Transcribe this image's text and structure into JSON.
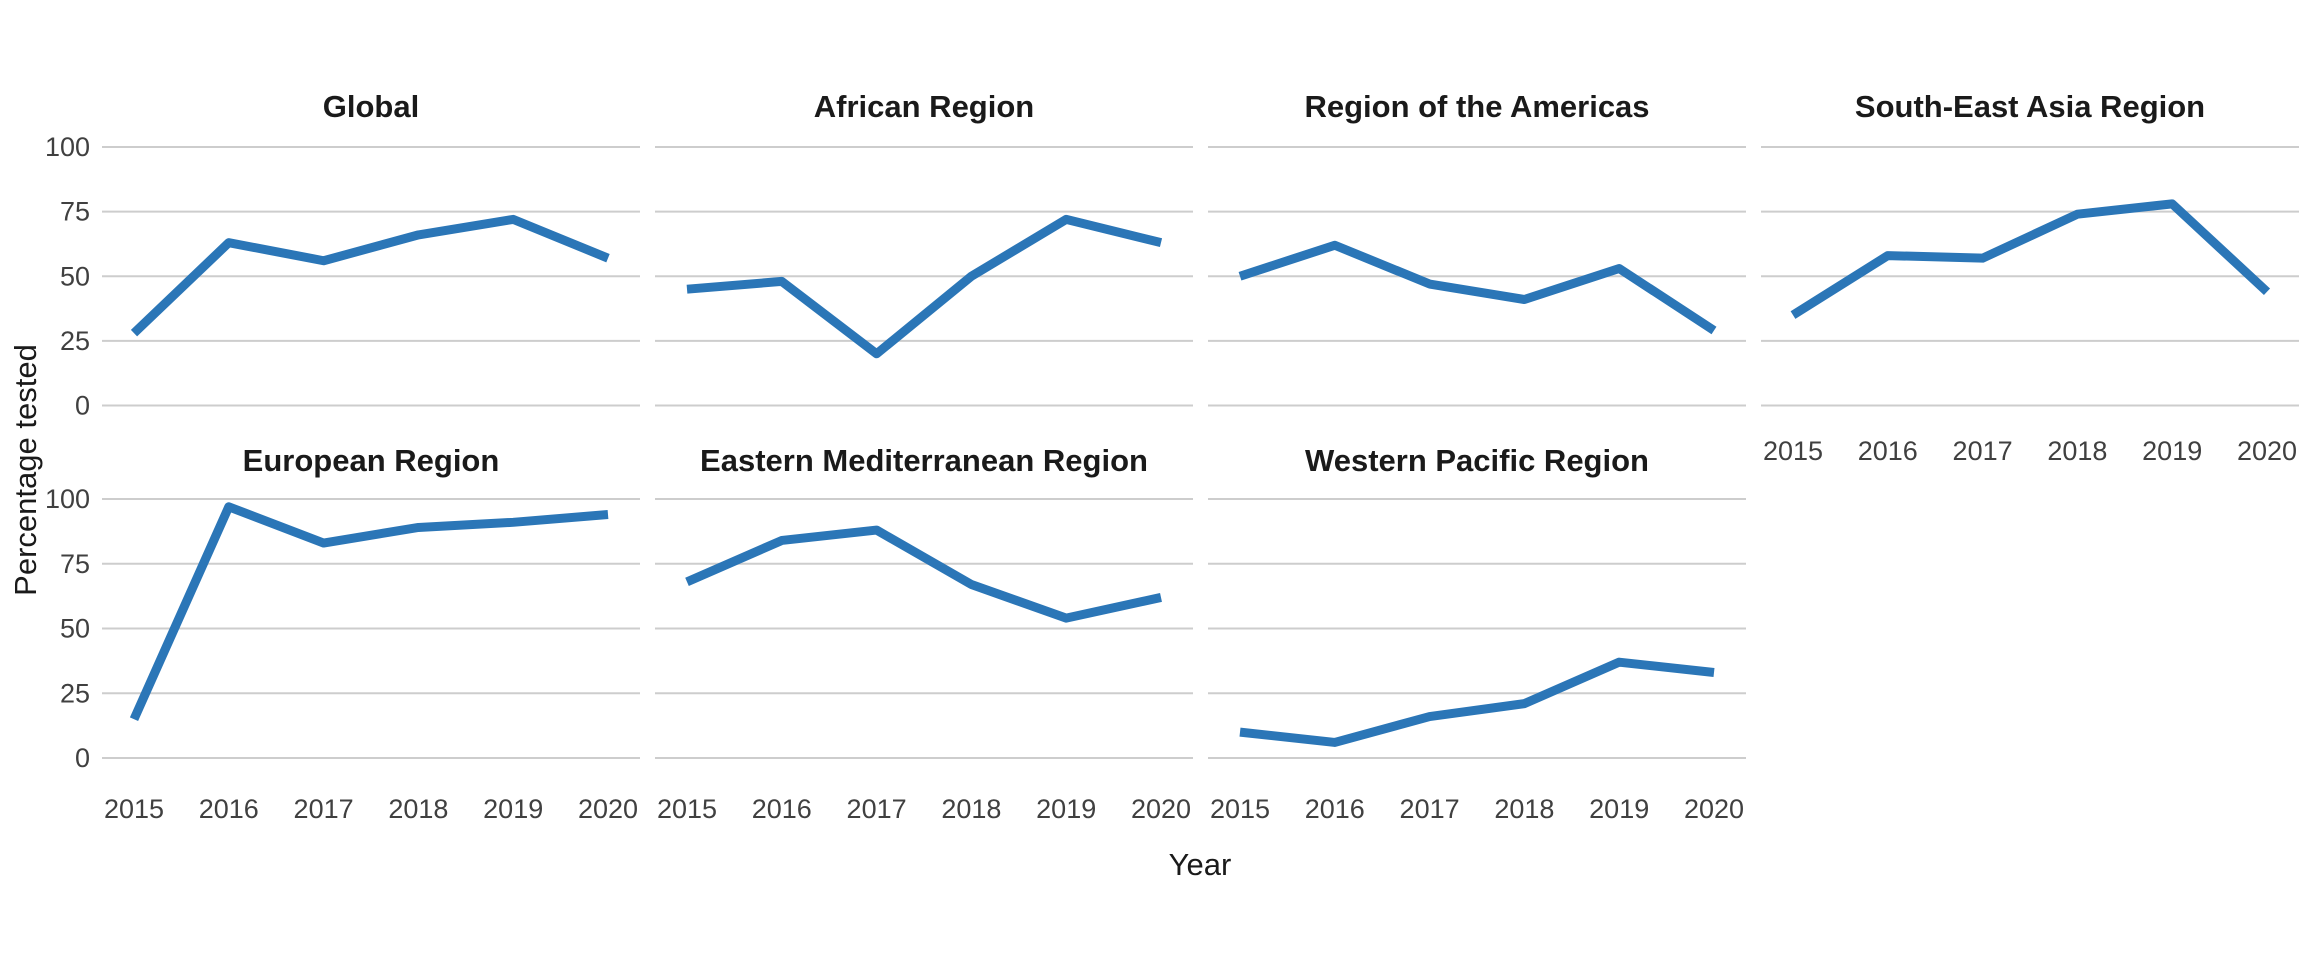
{
  "chart_data": {
    "type": "line",
    "ylabel": "Percentage tested",
    "xlabel": "Year",
    "x": [
      2015,
      2016,
      2017,
      2018,
      2019,
      2020
    ],
    "x_tick_labels": [
      "2015",
      "2016",
      "2017",
      "2018",
      "2019",
      "2020"
    ],
    "ylim": [
      0,
      100
    ],
    "yticks": [
      0,
      25,
      50,
      75,
      100
    ],
    "y_tick_labels": [
      "0",
      "25",
      "50",
      "75",
      "100"
    ],
    "grid": "horizontal-only",
    "legend": "none",
    "line_color": "#2B76B7",
    "gridline_color": "#cdcdcd",
    "background_color": "#ffffff",
    "title_color": "#1a1a1a",
    "tick_label_color": "#404040",
    "facets": [
      {
        "title": "Global",
        "values": [
          28,
          63,
          56,
          66,
          72,
          57
        ]
      },
      {
        "title": "African Region",
        "values": [
          45,
          48,
          20,
          50,
          72,
          63
        ]
      },
      {
        "title": "Region of the Americas",
        "values": [
          50,
          62,
          47,
          41,
          53,
          29
        ]
      },
      {
        "title": "South-East Asia Region",
        "values": [
          35,
          58,
          57,
          74,
          78,
          44
        ]
      },
      {
        "title": "European Region",
        "values": [
          15,
          97,
          83,
          89,
          91,
          94
        ]
      },
      {
        "title": "Eastern Mediterranean Region",
        "values": [
          68,
          84,
          88,
          67,
          54,
          62
        ]
      },
      {
        "title": "Western Pacific Region",
        "values": [
          10,
          6,
          16,
          21,
          37,
          33
        ]
      }
    ]
  }
}
